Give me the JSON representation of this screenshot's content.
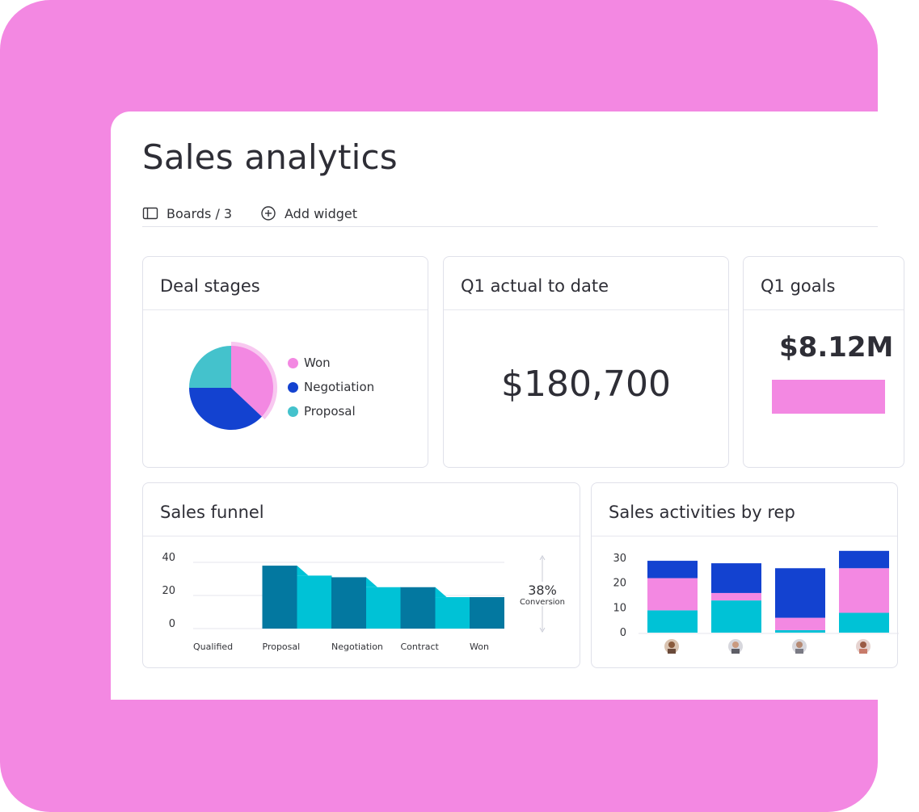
{
  "page": {
    "title": "Sales analytics"
  },
  "toolbar": {
    "boards_label": "Boards / 3",
    "add_widget_label": "Add widget"
  },
  "colors": {
    "background": "#f388e2",
    "dark_blue": "#1342d0",
    "pink": "#f388e2",
    "cyan": "#00c2d6",
    "teal": "#44c2cc",
    "funnel_dark": "#0378a0"
  },
  "deal_stages": {
    "title": "Deal stages",
    "legend": [
      {
        "label": "Won",
        "color": "#f388e2"
      },
      {
        "label": "Negotiation",
        "color": "#1342d0"
      },
      {
        "label": "Proposal",
        "color": "#44c2cc"
      }
    ]
  },
  "q1_actual": {
    "title": "Q1 actual to date",
    "value": "$180,700"
  },
  "q1_goals": {
    "title": "Q1 goals",
    "value": "$8.12M"
  },
  "sales_funnel": {
    "title": "Sales funnel",
    "conversion_value": "38%",
    "conversion_label": "Conversion"
  },
  "sales_activities": {
    "title": "Sales activities by rep"
  },
  "chart_data": [
    {
      "type": "pie",
      "categories": [
        "Won",
        "Negotiation",
        "Proposal"
      ],
      "values": [
        37,
        38,
        25
      ]
    },
    {
      "type": "bar",
      "categories": [
        "Qualified",
        "Proposal",
        "Negotiation",
        "Contract",
        "Won"
      ],
      "yticks": [
        "40",
        "20",
        "0"
      ],
      "ylim": [
        0,
        40
      ],
      "series": [
        {
          "values": [
            0,
            38,
            31,
            25,
            19
          ]
        },
        {
          "values": [
            0,
            32,
            25,
            19,
            0
          ]
        }
      ]
    },
    {
      "type": "bar",
      "stacked": true,
      "yticks": [
        "30",
        "20",
        "10",
        "0"
      ],
      "ylim": [
        0,
        30
      ],
      "categories": [
        "rep-1",
        "rep-2",
        "rep-3",
        "rep-4"
      ],
      "series": [
        {
          "color": "#00c2d6",
          "values": [
            9,
            13,
            1,
            8
          ]
        },
        {
          "color": "#f388e2",
          "values": [
            13,
            3,
            5,
            18
          ]
        },
        {
          "color": "#1342d0",
          "values": [
            7,
            12,
            20,
            7
          ]
        }
      ]
    }
  ]
}
